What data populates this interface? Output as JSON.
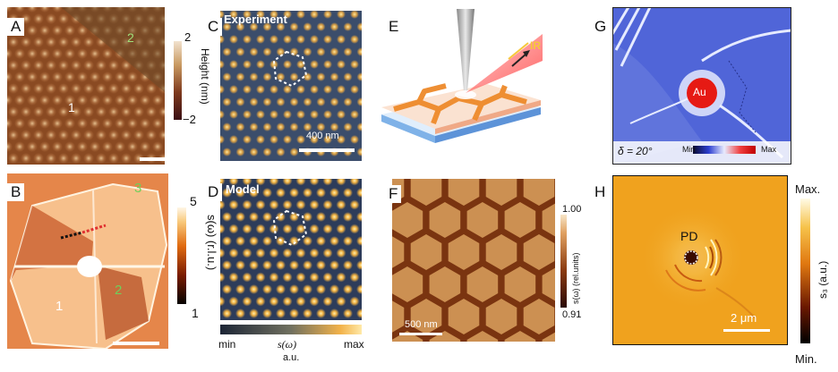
{
  "panels": {
    "A": {
      "label": "A",
      "region1": "1",
      "region2": "2",
      "cbar_max": "2",
      "cbar_min": "−2",
      "cbar_title": "Height (nm)"
    },
    "B": {
      "label": "B",
      "region1": "1",
      "region2": "2",
      "region3": "3",
      "cbar_max": "5",
      "cbar_min": "1",
      "cbar_title": "s(ω) (r.l.u.)"
    },
    "C": {
      "label": "C",
      "title": "Experiment",
      "scale": "400 nm"
    },
    "D": {
      "label": "D",
      "title": "Model",
      "cbar_min": "min",
      "cbar_mid": "s(ω)",
      "cbar_max": "max",
      "cbar_unit": "a.u."
    },
    "E": {
      "label": "E",
      "beam": "IR"
    },
    "F": {
      "label": "F",
      "cbar_max": "1.00",
      "cbar_min": "0.91",
      "cbar_title": "s(ω) (rel.units)",
      "scale": "500 nm"
    },
    "G": {
      "label": "G",
      "au": "Au",
      "delta": "δ = 20°",
      "cbar_min": "Min",
      "cbar_max": "Max"
    },
    "H": {
      "label": "H",
      "pd": "PD",
      "scale": "2 μm",
      "cbar_max": "Max.",
      "cbar_min": "Min.",
      "cbar_title": "s₃ (a.u.)"
    }
  },
  "colors": {
    "afm_dark": "#4a1c10",
    "afm_light": "#e6b88a",
    "snom_dark": "#2b3a55",
    "snom_light": "#f6c064",
    "g_blue": "#4f63d6",
    "g_red": "#e01616",
    "h_orange": "#f0a21e"
  }
}
